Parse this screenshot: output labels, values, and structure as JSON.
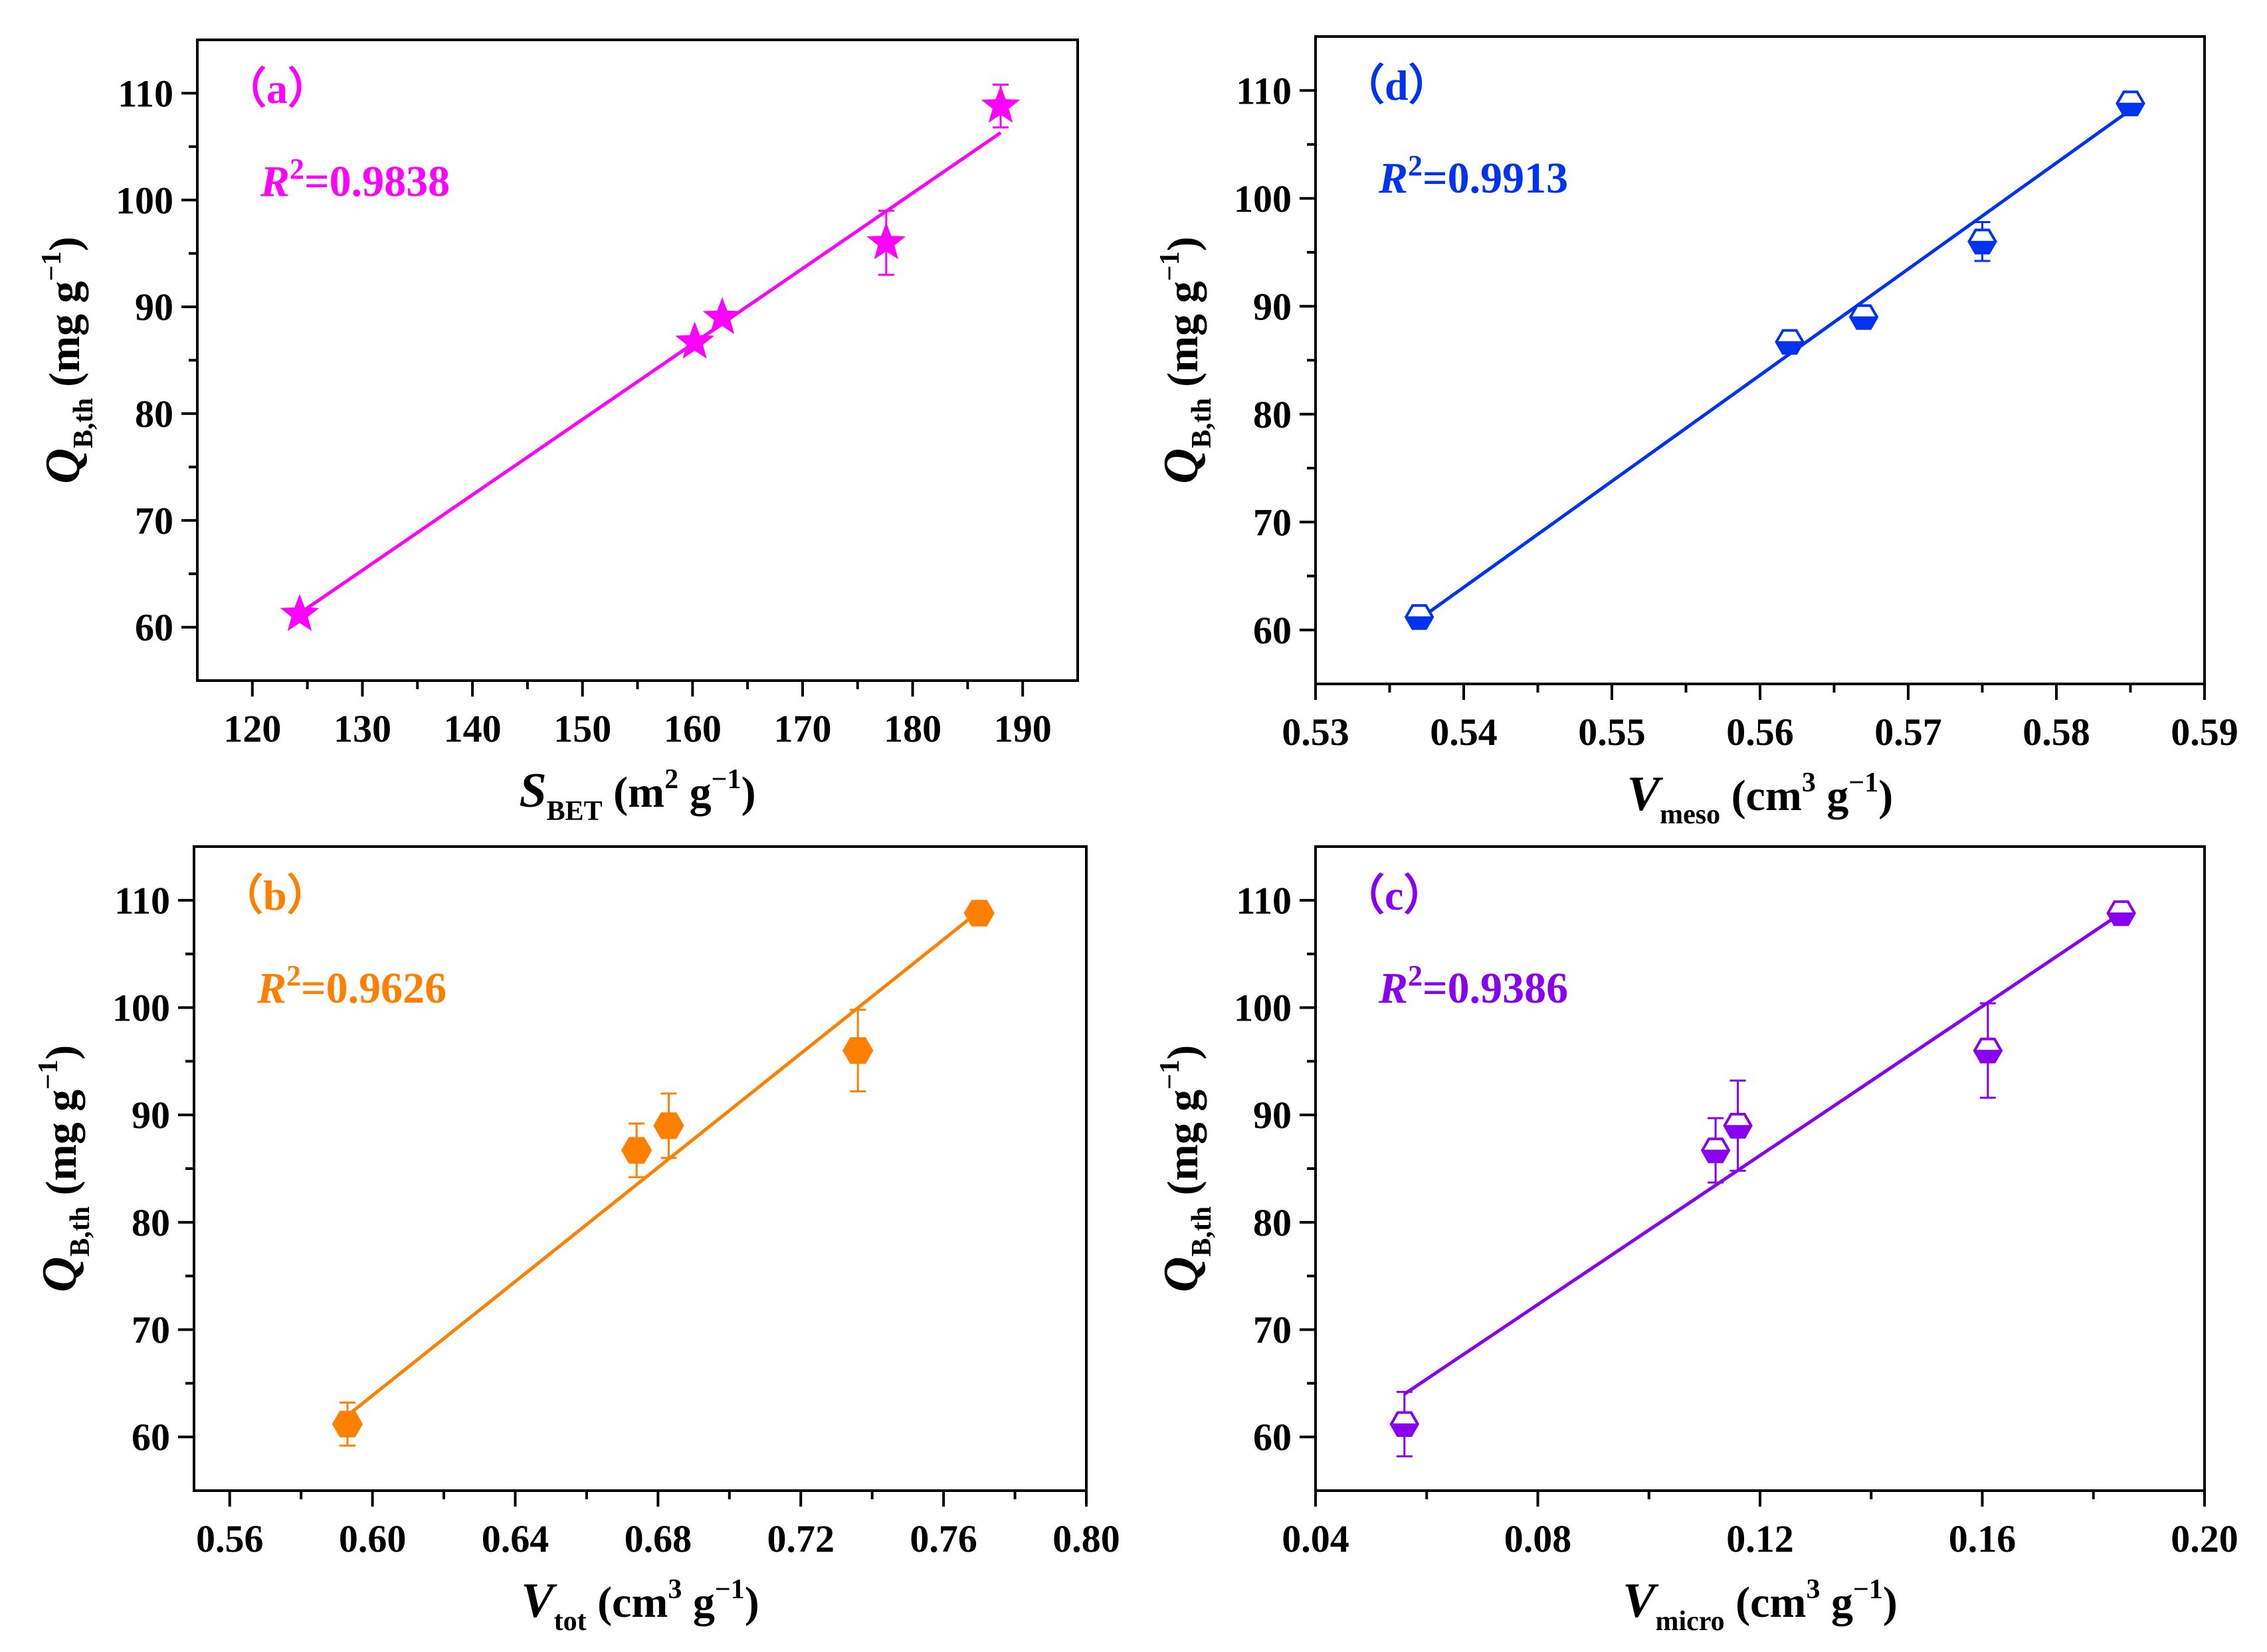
{
  "figure": {
    "panels_order": [
      "a",
      "d",
      "b",
      "c"
    ]
  },
  "chart_data": [
    {
      "id": "a",
      "type": "scatter",
      "panel_label": "（a）",
      "color": "#ff00ff",
      "marker": "star",
      "r2": {
        "symbol": "R",
        "sup": "2",
        "value": "=0.9838"
      },
      "xlabel": {
        "symbol": "S",
        "sub": "BET",
        "unit_pre": " (m",
        "sup": "2",
        "unit_post": " g",
        "sup2": "−1",
        "close": ")"
      },
      "ylabel": {
        "symbol": "Q",
        "sub": "B,th",
        "unit_pre": " (mg g",
        "sup": "−1",
        "close": ")"
      },
      "xlim": [
        115,
        195
      ],
      "ylim": [
        55,
        115
      ],
      "xticks": [
        120,
        130,
        140,
        150,
        160,
        170,
        180,
        190
      ],
      "xtick_labels": [
        "120",
        "130",
        "140",
        "150",
        "160",
        "170",
        "180",
        "190"
      ],
      "yticks": [
        60,
        70,
        80,
        90,
        100,
        110
      ],
      "ytick_labels": [
        "60",
        "70",
        "80",
        "90",
        "100",
        "110"
      ],
      "x": [
        124.3,
        160.2,
        162.7,
        177.6,
        188.0
      ],
      "y": [
        61.2,
        86.7,
        89.0,
        96.0,
        108.8
      ],
      "err": [
        0.5,
        0.5,
        0.5,
        3.0,
        2.0
      ],
      "fit": {
        "x": [
          124.3,
          188.0
        ],
        "y": [
          61.3,
          106.3
        ]
      }
    },
    {
      "id": "d",
      "type": "scatter",
      "panel_label": "（d）",
      "color": "#0033ee",
      "marker": "hexagon-half",
      "r2": {
        "symbol": "R",
        "sup": "2",
        "value": "=0.9913"
      },
      "xlabel": {
        "symbol": "V",
        "sub": "meso",
        "unit_pre": " (cm",
        "sup": "3",
        "unit_post": " g",
        "sup2": "−1",
        "close": ")"
      },
      "ylabel": {
        "symbol": "Q",
        "sub": "B,th",
        "unit_pre": " (mg g",
        "sup": "−1",
        "close": ")"
      },
      "xlim": [
        0.53,
        0.59
      ],
      "ylim": [
        55,
        115
      ],
      "xticks": [
        0.53,
        0.54,
        0.55,
        0.56,
        0.57,
        0.58,
        0.59
      ],
      "xtick_labels": [
        "0.53",
        "0.54",
        "0.55",
        "0.56",
        "0.57",
        "0.58",
        "0.59"
      ],
      "yticks": [
        60,
        70,
        80,
        90,
        100,
        110
      ],
      "ytick_labels": [
        "60",
        "70",
        "80",
        "90",
        "100",
        "110"
      ],
      "x": [
        0.537,
        0.562,
        0.567,
        0.575,
        0.585
      ],
      "y": [
        61.2,
        86.7,
        89.0,
        96.0,
        108.8
      ],
      "err": [
        0.5,
        1.0,
        0.6,
        1.8,
        0.6
      ],
      "fit": {
        "x": [
          0.537,
          0.585
        ],
        "y": [
          61.0,
          108.2
        ]
      }
    },
    {
      "id": "b",
      "type": "scatter",
      "panel_label": "（b）",
      "color": "#ff8000",
      "marker": "hexagon",
      "r2": {
        "symbol": "R",
        "sup": "2",
        "value": "=0.9626"
      },
      "xlabel": {
        "symbol": "V",
        "sub": "tot",
        "unit_pre": " (cm",
        "sup": "3",
        "unit_post": " g",
        "sup2": "−1",
        "close": ")"
      },
      "ylabel": {
        "symbol": "Q",
        "sub": "B,th",
        "unit_pre": " (mg g",
        "sup": "−1",
        "close": ")"
      },
      "xlim": [
        0.55,
        0.8
      ],
      "ylim": [
        55,
        115
      ],
      "xticks": [
        0.56,
        0.6,
        0.64,
        0.68,
        0.72,
        0.76,
        0.8
      ],
      "xtick_labels": [
        "0.56",
        "0.60",
        "0.64",
        "0.68",
        "0.72",
        "0.76",
        "0.80"
      ],
      "yticks": [
        60,
        70,
        80,
        90,
        100,
        110
      ],
      "ytick_labels": [
        "60",
        "70",
        "80",
        "90",
        "100",
        "110"
      ],
      "x": [
        0.593,
        0.674,
        0.683,
        0.736,
        0.77
      ],
      "y": [
        61.2,
        86.7,
        89.0,
        96.0,
        108.8
      ],
      "err": [
        2.0,
        2.5,
        3.0,
        3.8,
        0.5
      ],
      "fit": {
        "x": [
          0.593,
          0.77
        ],
        "y": [
          62.0,
          109.0
        ]
      }
    },
    {
      "id": "c",
      "type": "scatter",
      "panel_label": "（c）",
      "color": "#8800ee",
      "marker": "hexagon-half",
      "r2": {
        "symbol": "R",
        "sup": "2",
        "value": "=0.9386"
      },
      "xlabel": {
        "symbol": "V",
        "sub": "micro",
        "unit_pre": " (cm",
        "sup": "3",
        "unit_post": " g",
        "sup2": "−1",
        "close": ")"
      },
      "ylabel": {
        "symbol": "Q",
        "sub": "B,th",
        "unit_pre": " (mg g",
        "sup": "−1",
        "close": ")"
      },
      "xlim": [
        0.04,
        0.2
      ],
      "ylim": [
        55,
        115
      ],
      "xticks": [
        0.04,
        0.08,
        0.12,
        0.16,
        0.2
      ],
      "xtick_labels": [
        "0.04",
        "0.08",
        "0.12",
        "0.16",
        "0.20"
      ],
      "yticks": [
        60,
        70,
        80,
        90,
        100,
        110
      ],
      "ytick_labels": [
        "60",
        "70",
        "80",
        "90",
        "100",
        "110"
      ],
      "x": [
        0.056,
        0.112,
        0.116,
        0.161,
        0.185
      ],
      "y": [
        61.2,
        86.7,
        89.0,
        96.0,
        108.8
      ],
      "err": [
        3.0,
        3.0,
        4.2,
        4.4,
        0.6
      ],
      "fit": {
        "x": [
          0.056,
          0.185
        ],
        "y": [
          64.0,
          108.8
        ]
      }
    }
  ]
}
